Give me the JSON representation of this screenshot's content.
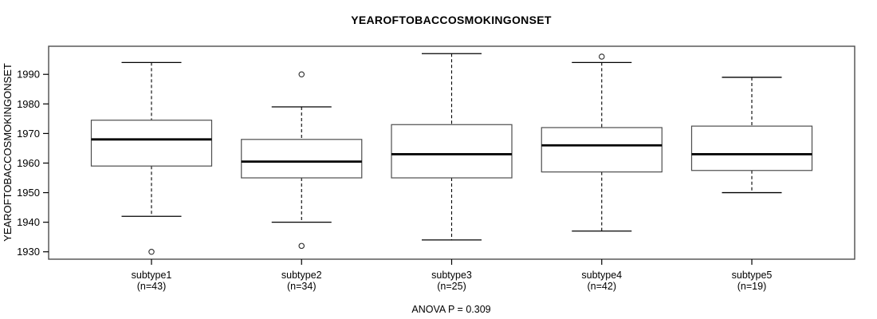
{
  "title": "YEAROFTOBACCOSMOKINGONSET",
  "chart_data": {
    "type": "boxplot",
    "title": "YEAROFTOBACCOSMOKINGONSET",
    "ylabel": "YEAROFTOBACCOSMOKINGONSET",
    "xlabel": "",
    "annotation": "ANOVA P = 0.309",
    "ylim": [
      1927.5,
      1999.5
    ],
    "yticks": [
      1930,
      1940,
      1950,
      1960,
      1970,
      1980,
      1990
    ],
    "grid": false,
    "legend": null,
    "categories": [
      "subtype1",
      "subtype2",
      "subtype3",
      "subtype4",
      "subtype5"
    ],
    "groups": [
      {
        "label": "subtype1",
        "sublabel": "(n=43)",
        "n": 43,
        "whisker_low": 1942,
        "q1": 1959,
        "median": 1968,
        "q3": 1974.5,
        "whisker_high": 1994,
        "outliers": [
          1930
        ]
      },
      {
        "label": "subtype2",
        "sublabel": "(n=34)",
        "n": 34,
        "whisker_low": 1940,
        "q1": 1955,
        "median": 1960.5,
        "q3": 1968,
        "whisker_high": 1979,
        "outliers": [
          1990,
          1932
        ]
      },
      {
        "label": "subtype3",
        "sublabel": "(n=25)",
        "n": 25,
        "whisker_low": 1934,
        "q1": 1955,
        "median": 1963,
        "q3": 1973,
        "whisker_high": 1997,
        "outliers": []
      },
      {
        "label": "subtype4",
        "sublabel": "(n=42)",
        "n": 42,
        "whisker_low": 1937,
        "q1": 1957,
        "median": 1966,
        "q3": 1972,
        "whisker_high": 1994,
        "outliers": [
          1996
        ]
      },
      {
        "label": "subtype5",
        "sublabel": "(n=19)",
        "n": 19,
        "whisker_low": 1950,
        "q1": 1957.5,
        "median": 1963,
        "q3": 1972.5,
        "whisker_high": 1989,
        "outliers": []
      }
    ],
    "colors": {
      "background": "#ffffff",
      "frame": "#4d4d4d",
      "box_fill": "#ffffff",
      "box_stroke": "#4d4d4d",
      "median": "#000000",
      "whisker": "#000000",
      "outlier": "#2b2b2b",
      "text": "#000000"
    }
  }
}
